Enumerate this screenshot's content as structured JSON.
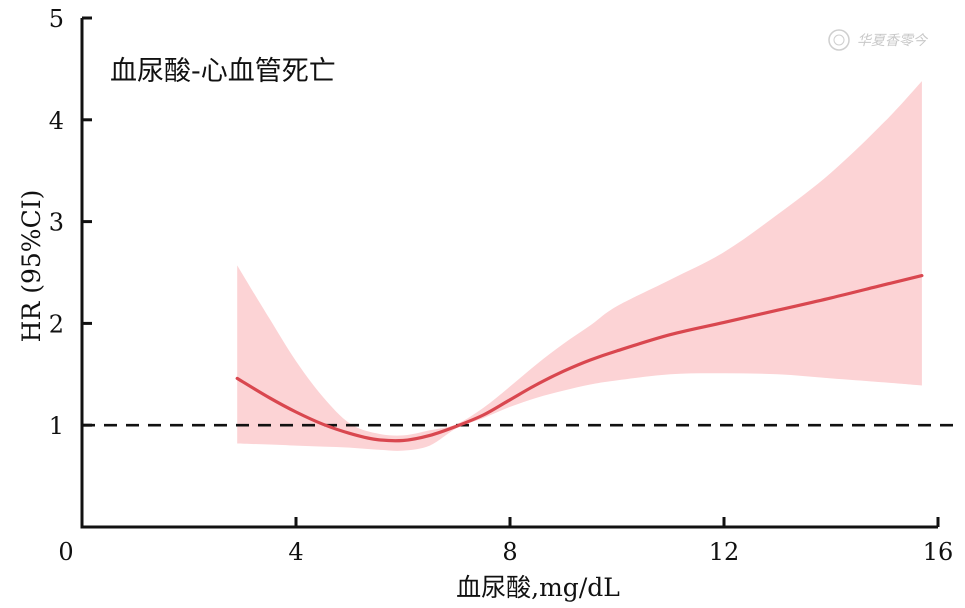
{
  "chart_data": {
    "type": "line",
    "title": "血尿酸-心血管死亡",
    "xlabel": "血尿酸,mg/dL",
    "ylabel": "HR (95%CI)",
    "xlim": [
      0,
      16
    ],
    "ylim": [
      0,
      5
    ],
    "xticks": [
      0,
      4,
      8,
      12,
      16
    ],
    "yticks": [
      1,
      2,
      3,
      4,
      5
    ],
    "x_tick_labels": [
      "0",
      "4",
      "8",
      "12",
      "16"
    ],
    "y_tick_labels": [
      "1",
      "2",
      "3",
      "4",
      "5"
    ],
    "reference_line": 1,
    "series": [
      {
        "x": [
          2.9,
          3.5,
          4.0,
          4.5,
          5.0,
          5.5,
          6.0,
          6.5,
          7.0,
          7.5,
          8.0,
          8.5,
          9.0,
          9.5,
          10.0,
          11.0,
          12.0,
          13.0,
          14.0,
          15.0,
          15.7
        ],
        "hr": [
          1.46,
          1.27,
          1.13,
          1.01,
          0.92,
          0.86,
          0.85,
          0.9,
          0.99,
          1.1,
          1.25,
          1.4,
          1.53,
          1.64,
          1.73,
          1.89,
          2.01,
          2.13,
          2.25,
          2.38,
          2.47
        ],
        "lower": [
          0.82,
          0.81,
          0.8,
          0.79,
          0.78,
          0.76,
          0.75,
          0.8,
          0.97,
          1.07,
          1.18,
          1.27,
          1.34,
          1.4,
          1.44,
          1.5,
          1.51,
          1.5,
          1.46,
          1.42,
          1.39
        ],
        "upper": [
          2.57,
          2.05,
          1.63,
          1.28,
          1.02,
          0.92,
          0.9,
          0.95,
          1.01,
          1.17,
          1.38,
          1.6,
          1.8,
          1.98,
          2.17,
          2.43,
          2.7,
          3.07,
          3.48,
          3.98,
          4.38
        ]
      }
    ],
    "colors": {
      "line": "#d9474f",
      "band": "#fcd3d5",
      "reference": "#111111",
      "axis": "#111111"
    },
    "watermark": "华夏香零今"
  }
}
